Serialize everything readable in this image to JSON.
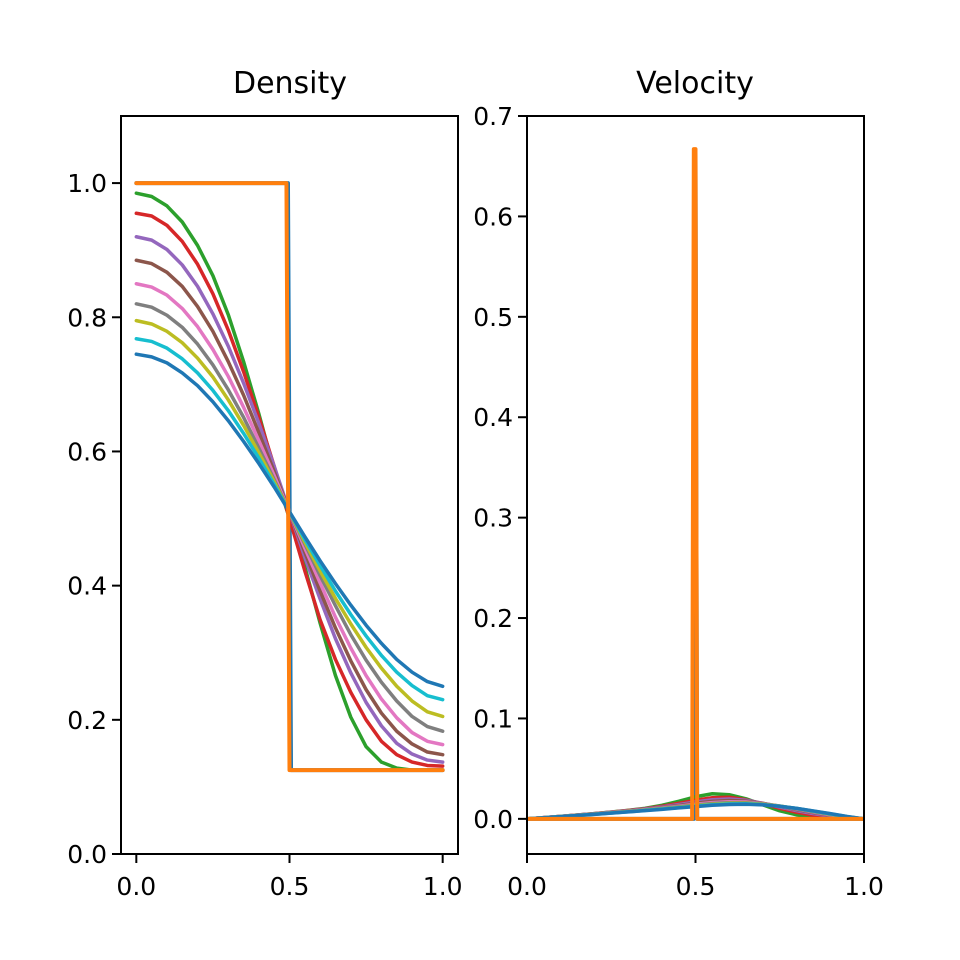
{
  "chart_data": [
    {
      "type": "line",
      "title": "Density",
      "xlabel": "",
      "ylabel": "",
      "xlim": [
        -0.05,
        1.05
      ],
      "ylim": [
        0.0,
        1.1
      ],
      "xticks": [
        0.0,
        0.5,
        1.0
      ],
      "xtick_labels": [
        "0.0",
        "0.5",
        "1.0"
      ],
      "yticks": [
        0.0,
        0.2,
        0.4,
        0.6,
        0.8,
        1.0
      ],
      "ytick_labels": [
        "0.0",
        "0.2",
        "0.4",
        "0.6",
        "0.8",
        "1.0"
      ],
      "grid": false,
      "x": [
        0.0,
        0.05,
        0.1,
        0.15,
        0.2,
        0.25,
        0.3,
        0.35,
        0.4,
        0.45,
        0.5,
        0.55,
        0.6,
        0.65,
        0.7,
        0.75,
        0.8,
        0.85,
        0.9,
        0.95,
        1.0
      ],
      "series": [
        {
          "color": "#1f77b4",
          "step": true,
          "x": [
            0.0,
            0.495,
            0.505,
            1.0
          ],
          "values": [
            1.0,
            1.0,
            0.125,
            0.125
          ]
        },
        {
          "color": "#2ca02c",
          "values": [
            0.985,
            0.98,
            0.966,
            0.942,
            0.907,
            0.862,
            0.804,
            0.734,
            0.656,
            0.572,
            0.5,
            0.428,
            0.344,
            0.266,
            0.204,
            0.16,
            0.137,
            0.128,
            0.125,
            0.125,
            0.125
          ]
        },
        {
          "color": "#d62728",
          "values": [
            0.955,
            0.951,
            0.937,
            0.913,
            0.879,
            0.835,
            0.781,
            0.719,
            0.651,
            0.578,
            0.5,
            0.422,
            0.349,
            0.29,
            0.241,
            0.2,
            0.168,
            0.148,
            0.137,
            0.132,
            0.131
          ]
        },
        {
          "color": "#9467bd",
          "values": [
            0.92,
            0.915,
            0.901,
            0.878,
            0.846,
            0.805,
            0.757,
            0.702,
            0.642,
            0.578,
            0.51,
            0.442,
            0.38,
            0.321,
            0.27,
            0.226,
            0.191,
            0.165,
            0.149,
            0.14,
            0.137
          ]
        },
        {
          "color": "#8c564b",
          "values": [
            0.885,
            0.88,
            0.867,
            0.846,
            0.816,
            0.779,
            0.734,
            0.684,
            0.628,
            0.57,
            0.51,
            0.45,
            0.392,
            0.337,
            0.288,
            0.245,
            0.21,
            0.183,
            0.164,
            0.152,
            0.148
          ]
        },
        {
          "color": "#e377c2",
          "values": [
            0.85,
            0.845,
            0.833,
            0.813,
            0.786,
            0.752,
            0.712,
            0.666,
            0.616,
            0.564,
            0.51,
            0.456,
            0.404,
            0.353,
            0.307,
            0.266,
            0.231,
            0.203,
            0.181,
            0.168,
            0.163
          ]
        },
        {
          "color": "#7f7f7f",
          "values": [
            0.82,
            0.815,
            0.803,
            0.785,
            0.76,
            0.729,
            0.692,
            0.651,
            0.605,
            0.558,
            0.51,
            0.462,
            0.415,
            0.37,
            0.327,
            0.289,
            0.256,
            0.228,
            0.205,
            0.19,
            0.183
          ]
        },
        {
          "color": "#bcbd22",
          "values": [
            0.795,
            0.79,
            0.779,
            0.762,
            0.739,
            0.711,
            0.677,
            0.639,
            0.598,
            0.555,
            0.51,
            0.465,
            0.422,
            0.381,
            0.343,
            0.308,
            0.277,
            0.25,
            0.228,
            0.212,
            0.205
          ]
        },
        {
          "color": "#17becf",
          "values": [
            0.768,
            0.764,
            0.754,
            0.738,
            0.717,
            0.691,
            0.661,
            0.627,
            0.59,
            0.551,
            0.51,
            0.469,
            0.43,
            0.392,
            0.357,
            0.325,
            0.296,
            0.271,
            0.251,
            0.236,
            0.23
          ]
        },
        {
          "color": "#1f77b4",
          "values": [
            0.745,
            0.741,
            0.732,
            0.717,
            0.698,
            0.674,
            0.646,
            0.615,
            0.582,
            0.547,
            0.51,
            0.473,
            0.437,
            0.403,
            0.371,
            0.341,
            0.314,
            0.29,
            0.271,
            0.257,
            0.25
          ]
        },
        {
          "color": "#ff7f0e",
          "step": true,
          "x": [
            0.0,
            0.49,
            0.5,
            1.0
          ],
          "values": [
            1.0,
            1.0,
            0.125,
            0.125
          ]
        }
      ]
    },
    {
      "type": "line",
      "title": "Velocity",
      "xlabel": "",
      "ylabel": "",
      "xlim": [
        0.0,
        1.0
      ],
      "ylim": [
        -0.035,
        0.7
      ],
      "xticks": [
        0.0,
        0.5,
        1.0
      ],
      "xtick_labels": [
        "0.0",
        "0.5",
        "1.0"
      ],
      "yticks": [
        0.0,
        0.1,
        0.2,
        0.3,
        0.4,
        0.5,
        0.6,
        0.7
      ],
      "ytick_labels": [
        "0.0",
        "0.1",
        "0.2",
        "0.3",
        "0.4",
        "0.5",
        "0.6",
        "0.7"
      ],
      "grid": false,
      "x": [
        0.0,
        0.05,
        0.1,
        0.15,
        0.2,
        0.25,
        0.3,
        0.35,
        0.4,
        0.45,
        0.5,
        0.55,
        0.6,
        0.65,
        0.7,
        0.75,
        0.8,
        0.85,
        0.9,
        0.95,
        1.0
      ],
      "series": [
        {
          "color": "#1f77b4",
          "step": true,
          "x": [
            0.0,
            0.495,
            0.5,
            0.505,
            1.0
          ],
          "values": [
            0.0,
            0.0,
            0.665,
            0.0,
            0.0
          ]
        },
        {
          "color": "#2ca02c",
          "values": [
            0.0,
            0.0012,
            0.0025,
            0.0038,
            0.0052,
            0.0068,
            0.0085,
            0.0105,
            0.0135,
            0.0175,
            0.022,
            0.025,
            0.024,
            0.02,
            0.014,
            0.008,
            0.004,
            0.0015,
            0.0005,
            0.0001,
            0.0
          ]
        },
        {
          "color": "#d62728",
          "values": [
            0.0,
            0.0012,
            0.0025,
            0.0038,
            0.0052,
            0.0067,
            0.0083,
            0.0101,
            0.0125,
            0.0155,
            0.0185,
            0.021,
            0.0215,
            0.019,
            0.015,
            0.0105,
            0.0065,
            0.0035,
            0.0015,
            0.0005,
            0.0
          ]
        },
        {
          "color": "#9467bd",
          "values": [
            0.0,
            0.0012,
            0.0025,
            0.0038,
            0.0051,
            0.0066,
            0.0081,
            0.0098,
            0.0118,
            0.0142,
            0.0168,
            0.019,
            0.0198,
            0.0185,
            0.0155,
            0.0118,
            0.0082,
            0.0052,
            0.0028,
            0.001,
            0.0
          ]
        },
        {
          "color": "#8c564b",
          "values": [
            0.0,
            0.0012,
            0.0024,
            0.0037,
            0.005,
            0.0064,
            0.0079,
            0.0095,
            0.0113,
            0.0133,
            0.0155,
            0.0174,
            0.0183,
            0.0177,
            0.0155,
            0.0125,
            0.0092,
            0.0062,
            0.0035,
            0.0013,
            0.0
          ]
        },
        {
          "color": "#e377c2",
          "values": [
            0.0,
            0.0012,
            0.0024,
            0.0036,
            0.0049,
            0.0063,
            0.0077,
            0.0092,
            0.0108,
            0.0126,
            0.0145,
            0.0162,
            0.0171,
            0.0168,
            0.0152,
            0.0127,
            0.0098,
            0.0068,
            0.004,
            0.0016,
            0.0
          ]
        },
        {
          "color": "#7f7f7f",
          "values": [
            0.0,
            0.0011,
            0.0023,
            0.0035,
            0.0048,
            0.0061,
            0.0075,
            0.0089,
            0.0104,
            0.0121,
            0.0138,
            0.0153,
            0.0162,
            0.0161,
            0.0149,
            0.0128,
            0.0101,
            0.0072,
            0.0044,
            0.0018,
            0.0
          ]
        },
        {
          "color": "#bcbd22",
          "values": [
            0.0,
            0.0011,
            0.0023,
            0.0035,
            0.0047,
            0.006,
            0.0073,
            0.0087,
            0.0101,
            0.0116,
            0.0132,
            0.0146,
            0.0155,
            0.0155,
            0.0145,
            0.0127,
            0.0103,
            0.0075,
            0.0047,
            0.002,
            0.0
          ]
        },
        {
          "color": "#17becf",
          "values": [
            0.0,
            0.0011,
            0.0022,
            0.0034,
            0.0046,
            0.0058,
            0.0071,
            0.0084,
            0.0098,
            0.0112,
            0.0127,
            0.014,
            0.0149,
            0.015,
            0.0142,
            0.0126,
            0.0104,
            0.0077,
            0.005,
            0.0022,
            0.0
          ]
        },
        {
          "color": "#1f77b4",
          "values": [
            0.0,
            0.0011,
            0.0022,
            0.0033,
            0.0045,
            0.0057,
            0.0069,
            0.0082,
            0.0095,
            0.0109,
            0.0122,
            0.0135,
            0.0143,
            0.0145,
            0.0139,
            0.0125,
            0.0104,
            0.0079,
            0.0052,
            0.0024,
            0.0
          ]
        },
        {
          "color": "#ff7f0e",
          "step": true,
          "x": [
            0.0,
            0.49,
            0.495,
            0.5,
            0.505,
            1.0
          ],
          "values": [
            0.0,
            0.0,
            0.667,
            0.667,
            0.0,
            0.0
          ]
        }
      ]
    }
  ]
}
